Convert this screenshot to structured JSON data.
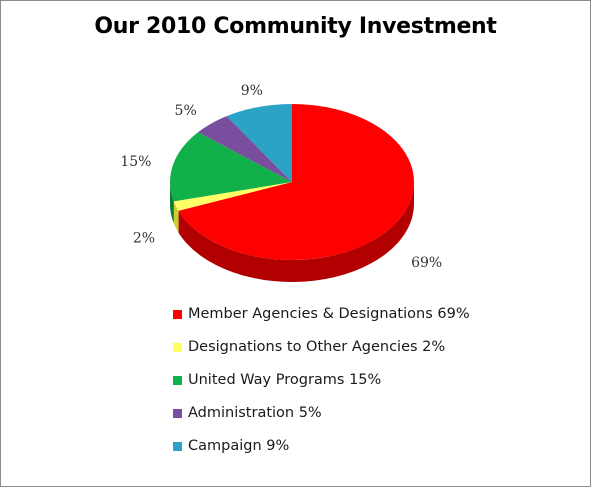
{
  "chart_data": {
    "type": "pie",
    "title": "Our 2010 Community Investment",
    "slices": [
      {
        "label": "Member Agencies & Designations",
        "value": 69,
        "data_label": "69%",
        "legend_label": "Member Agencies & Designations 69%",
        "color": "#ff0000",
        "side": "#b20000"
      },
      {
        "label": "Designations to Other Agencies",
        "value": 2,
        "data_label": "2%",
        "legend_label": "Designations to Other Agencies 2%",
        "color": "#ffff66",
        "side": "#cccc33"
      },
      {
        "label": "United Way Programs",
        "value": 15,
        "data_label": "15%",
        "legend_label": "United Way Programs 15%",
        "color": "#12b04a",
        "side": "#0a7a33"
      },
      {
        "label": "Administration",
        "value": 5,
        "data_label": "5%",
        "legend_label": "Administration 5%",
        "color": "#7a4e9e",
        "side": "#55356f"
      },
      {
        "label": "Campaign",
        "value": 9,
        "data_label": "9%",
        "legend_label": "Campaign 9%",
        "color": "#2aa3c6",
        "side": "#1b7590"
      }
    ],
    "legend_position": "bottom",
    "start_angle_deg": 0,
    "direction": "clockwise",
    "three_d": true
  }
}
